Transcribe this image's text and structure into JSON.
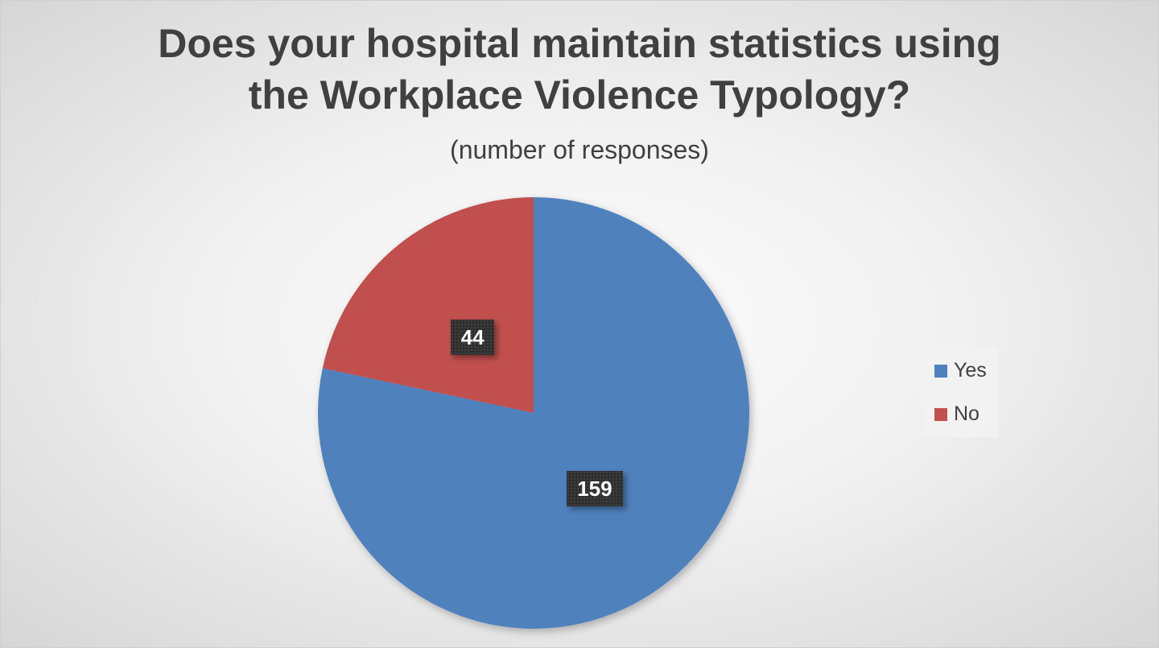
{
  "chart_data": {
    "type": "pie",
    "title_lines": [
      "Does your hospital maintain statistics using",
      "the Workplace Violence Typology?"
    ],
    "subtitle": "(number of responses)",
    "categories": [
      "Yes",
      "No"
    ],
    "values": [
      159,
      44
    ],
    "colors": [
      "#4f81bd",
      "#c0504d"
    ],
    "legend_position": "right",
    "data_labels": [
      "159",
      "44"
    ]
  }
}
